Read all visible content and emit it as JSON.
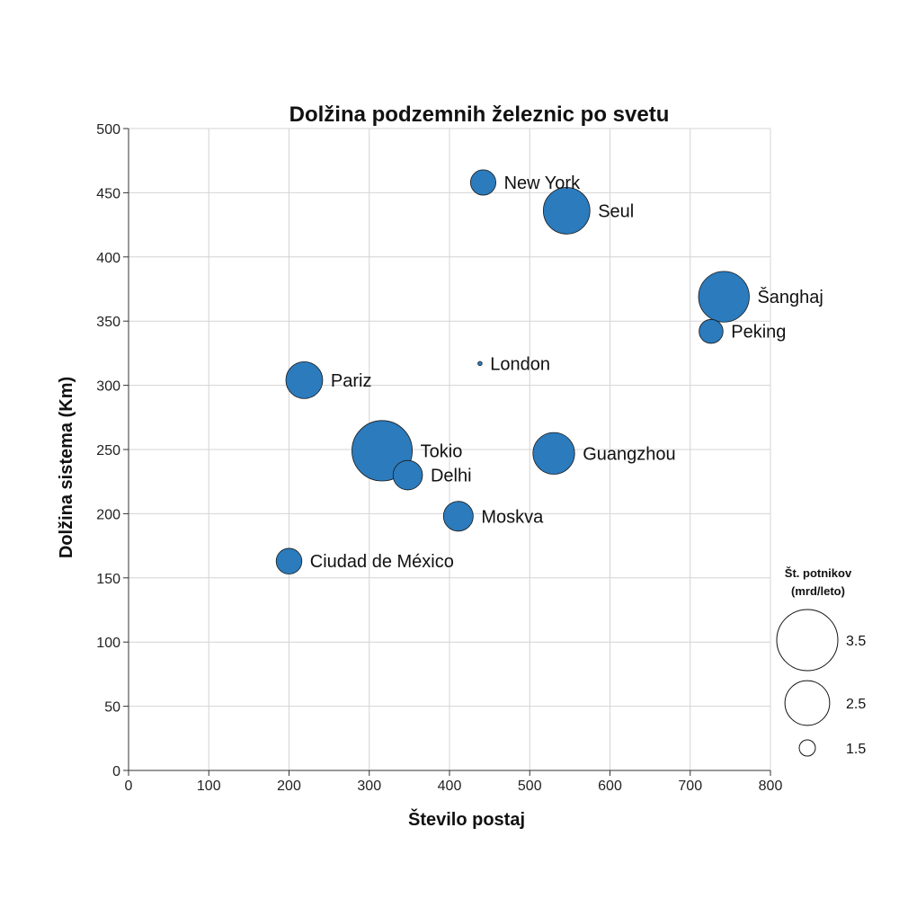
{
  "chart_data": {
    "type": "scatter",
    "title": "Dolžina podzemnih železnic po svetu",
    "xlabel": "Število postaj",
    "ylabel": "Dolžina sistema (Km)",
    "xlim": [
      0,
      800
    ],
    "ylim": [
      0,
      500
    ],
    "x_ticks": [
      "0",
      "100",
      "200",
      "300",
      "400",
      "500",
      "600",
      "700",
      "800"
    ],
    "y_ticks": [
      "0",
      "50",
      "100",
      "150",
      "200",
      "250",
      "300",
      "350",
      "400",
      "450",
      "500"
    ],
    "grid": true,
    "bubble_color": "#2b7bbd",
    "size_legend": {
      "title_line1": "Št. potnikov",
      "title_line2": "(mrd/leto)",
      "placement": "bottom-right",
      "values": [
        {
          "value": 3.5,
          "label": "3.5"
        },
        {
          "value": 2.5,
          "label": "2.5"
        },
        {
          "value": 1.5,
          "label": "1.5"
        }
      ]
    },
    "points": [
      {
        "name": "New York",
        "x": 442,
        "y": 458,
        "riders": 1.72,
        "label_side": "right"
      },
      {
        "name": "Seul",
        "x": 546,
        "y": 436,
        "riders": 2.6,
        "label_side": "right"
      },
      {
        "name": "Šanghaj",
        "x": 742,
        "y": 369,
        "riders": 2.83,
        "label_side": "right"
      },
      {
        "name": "Peking",
        "x": 726,
        "y": 342,
        "riders": 1.68,
        "label_side": "right"
      },
      {
        "name": "London",
        "x": 438,
        "y": 317,
        "riders": 1.36,
        "label_side": "right"
      },
      {
        "name": "Pariz",
        "x": 219,
        "y": 304,
        "riders": 2.13,
        "label_side": "right"
      },
      {
        "name": "Tokio",
        "x": 316,
        "y": 249,
        "riders": 3.45,
        "label_side": "right"
      },
      {
        "name": "Delhi",
        "x": 348,
        "y": 230,
        "riders": 1.85,
        "label_side": "right"
      },
      {
        "name": "Guangzhou",
        "x": 530,
        "y": 247,
        "riders": 2.35,
        "label_side": "right"
      },
      {
        "name": "Moskva",
        "x": 411,
        "y": 198,
        "riders": 1.86,
        "label_side": "right"
      },
      {
        "name": "Ciudad de México",
        "x": 200,
        "y": 163,
        "riders": 1.73,
        "label_side": "right"
      }
    ]
  }
}
